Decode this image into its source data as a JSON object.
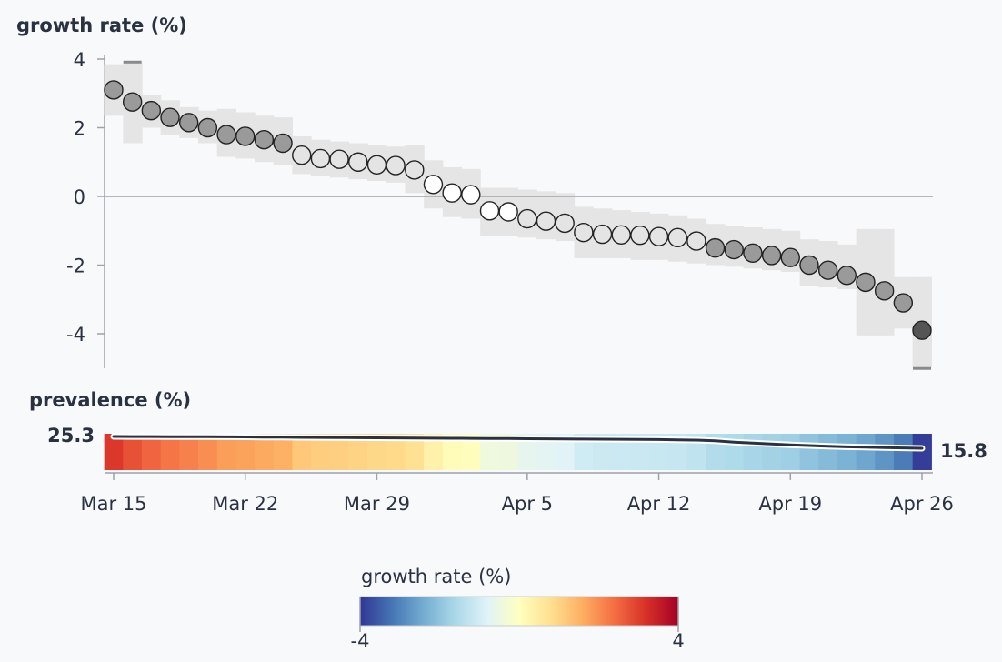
{
  "chart_data": [
    {
      "type": "scatter",
      "title": "growth rate (%)",
      "ylabel": "growth rate (%)",
      "ylim": [
        -5,
        4
      ],
      "yticks": [
        4,
        2,
        0,
        -2,
        -4
      ],
      "x_start": "Mar 15",
      "x_end": "Apr 26",
      "xticks": [
        "Mar 15",
        "Mar 22",
        "Mar 29",
        "Apr 5",
        "Apr 12",
        "Apr 19",
        "Apr 26"
      ],
      "series": [
        {
          "values": [
            3.1,
            2.75,
            2.5,
            2.3,
            2.15,
            2.0,
            1.8,
            1.75,
            1.65,
            1.55,
            1.2,
            1.1,
            1.08,
            1.0,
            0.92,
            0.9,
            0.77,
            0.35,
            0.1,
            0.05,
            -0.42,
            -0.45,
            -0.65,
            -0.72,
            -0.78,
            -1.05,
            -1.1,
            -1.12,
            -1.13,
            -1.17,
            -1.2,
            -1.3,
            -1.5,
            -1.55,
            -1.65,
            -1.72,
            -1.78,
            -2.0,
            -2.15,
            -2.3,
            -2.5,
            -2.75,
            -3.1,
            -3.9
          ],
          "lower": [
            2.35,
            1.55,
            2.0,
            1.8,
            1.7,
            1.55,
            1.15,
            1.1,
            1.0,
            0.9,
            0.65,
            0.6,
            0.55,
            0.5,
            0.45,
            0.4,
            0.1,
            -0.35,
            -0.6,
            -0.65,
            -1.15,
            -1.15,
            -1.2,
            -1.25,
            -1.3,
            -1.8,
            -1.8,
            -1.8,
            -1.85,
            -1.85,
            -1.9,
            -1.95,
            -2.0,
            -2.05,
            -2.1,
            -2.15,
            -2.2,
            -2.6,
            -2.65,
            -2.7,
            -4.05,
            -4.05,
            -3.85,
            -5.0
          ],
          "upper": [
            3.85,
            3.9,
            2.95,
            2.8,
            2.6,
            2.5,
            2.55,
            2.45,
            2.35,
            2.3,
            1.75,
            1.65,
            1.6,
            1.55,
            1.5,
            1.45,
            1.5,
            1.05,
            0.85,
            0.8,
            0.25,
            0.25,
            0.2,
            0.15,
            0.1,
            -0.3,
            -0.35,
            -0.4,
            -0.45,
            -0.5,
            -0.55,
            -0.65,
            -0.8,
            -0.85,
            -0.9,
            -0.95,
            -1.0,
            -1.25,
            -1.3,
            -1.4,
            -0.95,
            -0.95,
            -2.35,
            -2.35
          ]
        }
      ]
    },
    {
      "type": "line",
      "title": "prevalence (%)",
      "start_label": "25.3",
      "end_label": "15.8",
      "values": [
        25.3,
        25.25,
        25.2,
        25.15,
        25.1,
        25.05,
        25.0,
        24.9,
        24.8,
        24.7,
        24.6,
        24.5,
        24.4,
        24.3,
        24.2,
        24.1,
        24.0,
        23.9,
        23.85,
        23.8,
        23.7,
        23.6,
        23.5,
        23.4,
        23.3,
        23.2,
        23.1,
        23.0,
        22.9,
        22.8,
        22.6,
        22.4,
        21.8,
        20.8,
        20.0,
        19.3,
        18.6,
        18.0,
        17.5,
        17.0,
        16.7,
        16.4,
        16.1,
        15.8
      ]
    }
  ],
  "legend": {
    "title": "growth rate (%)",
    "min_label": "-4",
    "max_label": "4",
    "colors": [
      "#313695",
      "#4575b4",
      "#74add1",
      "#abd9e9",
      "#e0f3f8",
      "#ffffbf",
      "#fee090",
      "#fdae61",
      "#f46d43",
      "#d73027",
      "#a50026"
    ]
  }
}
